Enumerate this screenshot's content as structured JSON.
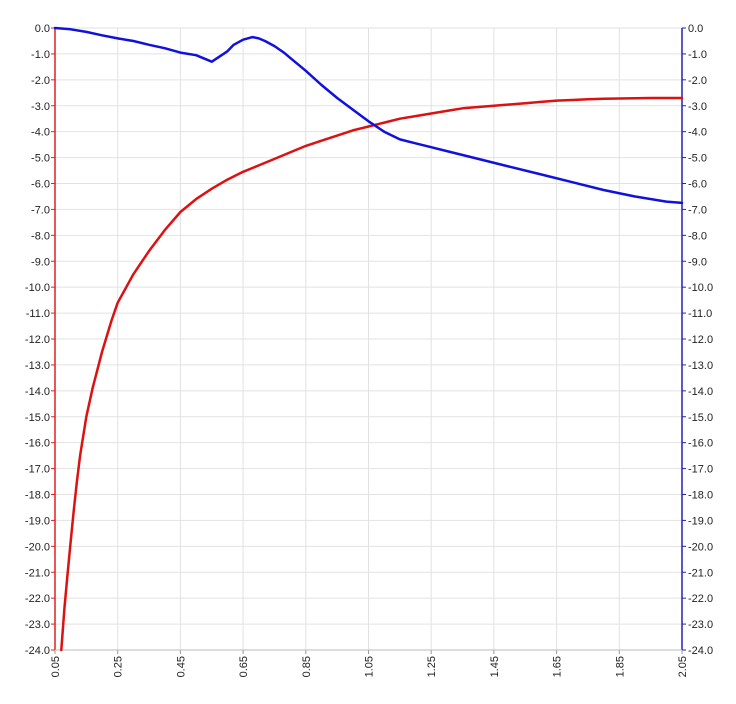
{
  "chart_data": {
    "type": "line",
    "title": "",
    "xlabel": "",
    "ylabel_left": "",
    "ylabel_right": "",
    "x_ticks": [
      "0.05",
      "0.25",
      "0.45",
      "0.65",
      "0.85",
      "1.05",
      "1.25",
      "1.45",
      "1.65",
      "1.85",
      "2.05"
    ],
    "x_range": [
      0.05,
      2.05
    ],
    "y_left_range": [
      -24.0,
      0.0
    ],
    "y_right_range": [
      -24.0,
      0.0
    ],
    "y_ticks": [
      "0.0",
      "-1.0",
      "-2.0",
      "-3.0",
      "-4.0",
      "-5.0",
      "-6.0",
      "-7.0",
      "-8.0",
      "-9.0",
      "-10.0",
      "-11.0",
      "-12.0",
      "-13.0",
      "-14.0",
      "-15.0",
      "-16.0",
      "-17.0",
      "-18.0",
      "-19.0",
      "-20.0",
      "-21.0",
      "-22.0",
      "-23.0",
      "-24.0"
    ],
    "grid": true,
    "left_axis_color": "#dd2222",
    "right_axis_color": "#2222bb",
    "series": [
      {
        "axis": "left",
        "color": "#dd1111",
        "x": [
          0.07,
          0.08,
          0.09,
          0.1,
          0.11,
          0.12,
          0.13,
          0.15,
          0.17,
          0.2,
          0.23,
          0.25,
          0.3,
          0.35,
          0.4,
          0.45,
          0.5,
          0.55,
          0.6,
          0.65,
          0.7,
          0.75,
          0.8,
          0.85,
          0.9,
          0.95,
          1.0,
          1.05,
          1.1,
          1.15,
          1.2,
          1.25,
          1.3,
          1.35,
          1.4,
          1.45,
          1.5,
          1.55,
          1.6,
          1.65,
          1.7,
          1.75,
          1.8,
          1.85,
          1.9,
          1.95,
          2.0,
          2.05
        ],
        "y": [
          -24.0,
          -22.4,
          -21.1,
          -19.8,
          -18.6,
          -17.5,
          -16.5,
          -15.0,
          -13.9,
          -12.5,
          -11.3,
          -10.6,
          -9.5,
          -8.6,
          -7.8,
          -7.1,
          -6.6,
          -6.2,
          -5.85,
          -5.55,
          -5.3,
          -5.05,
          -4.8,
          -4.55,
          -4.35,
          -4.15,
          -3.95,
          -3.8,
          -3.65,
          -3.5,
          -3.4,
          -3.3,
          -3.2,
          -3.1,
          -3.05,
          -3.0,
          -2.95,
          -2.9,
          -2.85,
          -2.8,
          -2.78,
          -2.75,
          -2.73,
          -2.72,
          -2.71,
          -2.7,
          -2.7,
          -2.7
        ]
      },
      {
        "axis": "right",
        "color": "#1111dd",
        "x": [
          0.05,
          0.1,
          0.15,
          0.2,
          0.25,
          0.3,
          0.35,
          0.4,
          0.45,
          0.5,
          0.55,
          0.6,
          0.62,
          0.65,
          0.68,
          0.7,
          0.72,
          0.75,
          0.78,
          0.8,
          0.85,
          0.9,
          0.95,
          1.0,
          1.05,
          1.1,
          1.15,
          1.2,
          1.25,
          1.3,
          1.4,
          1.5,
          1.6,
          1.7,
          1.8,
          1.9,
          2.0,
          2.05
        ],
        "y": [
          0.0,
          -0.05,
          -0.15,
          -0.28,
          -0.4,
          -0.5,
          -0.65,
          -0.78,
          -0.95,
          -1.05,
          -1.3,
          -0.9,
          -0.65,
          -0.45,
          -0.35,
          -0.4,
          -0.5,
          -0.7,
          -0.95,
          -1.15,
          -1.65,
          -2.2,
          -2.7,
          -3.15,
          -3.6,
          -4.0,
          -4.3,
          -4.45,
          -4.6,
          -4.75,
          -5.05,
          -5.35,
          -5.65,
          -5.95,
          -6.25,
          -6.5,
          -6.7,
          -6.75
        ]
      }
    ]
  }
}
